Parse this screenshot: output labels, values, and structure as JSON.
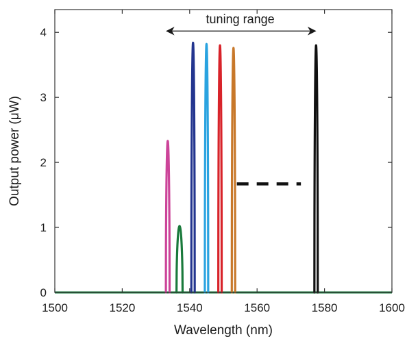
{
  "chart_data": {
    "type": "line",
    "xlabel": "Wavelength (nm)",
    "ylabel": "Output power (μW)",
    "xlim": [
      1500,
      1600
    ],
    "ylim": [
      0,
      4.35
    ],
    "grid": false,
    "x_ticks": [
      {
        "value": 1500,
        "label": "1500"
      },
      {
        "value": 1520,
        "label": "1520"
      },
      {
        "value": 1540,
        "label": "1540"
      },
      {
        "value": 1560,
        "label": "1560"
      },
      {
        "value": 1580,
        "label": "1580"
      },
      {
        "value": 1600,
        "label": "1600"
      }
    ],
    "y_ticks": [
      {
        "value": 0,
        "label": "0"
      },
      {
        "value": 1,
        "label": "1"
      },
      {
        "value": 2,
        "label": "2"
      },
      {
        "value": 3,
        "label": "3"
      },
      {
        "value": 4,
        "label": "4"
      }
    ],
    "series": [
      {
        "color": "#cc4499",
        "peak_x": 1533.5,
        "peak_y": 2.33,
        "halfwidth": 0.55
      },
      {
        "color": "#1a7a3c",
        "peak_x": 1537.0,
        "peak_y": 1.02,
        "halfwidth": 0.9
      },
      {
        "color": "#23358f",
        "peak_x": 1541.0,
        "peak_y": 3.84,
        "halfwidth": 0.5
      },
      {
        "color": "#2aa3e0",
        "peak_x": 1545.0,
        "peak_y": 3.82,
        "halfwidth": 0.5
      },
      {
        "color": "#d8232a",
        "peak_x": 1549.0,
        "peak_y": 3.8,
        "halfwidth": 0.5
      },
      {
        "color": "#c8782a",
        "peak_x": 1553.0,
        "peak_y": 3.76,
        "halfwidth": 0.5
      },
      {
        "color": "#111111",
        "peak_x": 1577.5,
        "peak_y": 3.8,
        "halfwidth": 0.5
      }
    ],
    "baseline_color": "#1a7a3c",
    "dashed_segment": {
      "x": [
        1554.0,
        1573.0
      ],
      "y": 1.67,
      "color": "#111111"
    },
    "annotations": [
      {
        "text": "tuning range",
        "arrow_x": [
          1533.2,
          1577.3
        ],
        "arrow_y": 4.02,
        "text_x": 1555.0,
        "text_y": 4.14
      }
    ]
  }
}
